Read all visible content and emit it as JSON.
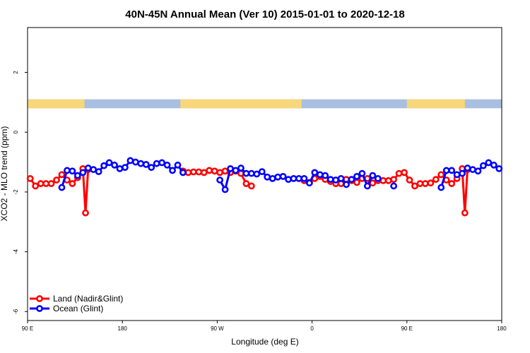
{
  "chart_data": {
    "type": "line",
    "title": "40N-45N Annual Mean (Ver 10)   2015-01-01 to 2020-12-18",
    "xlabel": "Longitude (deg E)",
    "ylabel": "XCO2 - MLO trend (ppm)",
    "xlim": [
      90,
      540
    ],
    "ylim": [
      -6.3,
      3.5
    ],
    "x_ticks": [
      {
        "value": 90,
        "label": "90 E"
      },
      {
        "value": 180,
        "label": "180"
      },
      {
        "value": 270,
        "label": "90 W"
      },
      {
        "value": 360,
        "label": "0"
      },
      {
        "value": 450,
        "label": "90 E"
      },
      {
        "value": 540,
        "label": "180"
      }
    ],
    "y_ticks": [
      {
        "value": 2,
        "label": "2"
      },
      {
        "value": 0,
        "label": "0"
      },
      {
        "value": -2,
        "label": "-2"
      },
      {
        "value": -4,
        "label": "-4"
      },
      {
        "value": -6,
        "label": "-6"
      }
    ],
    "land_mask": {
      "y_range": [
        0.8,
        1.1
      ],
      "land_color": "#f7d77a",
      "ocean_color": "#a9bfe0",
      "land_segments": [
        [
          90,
          144
        ],
        [
          235,
          350
        ],
        [
          450,
          505
        ]
      ]
    },
    "legend_position": "bottom-left",
    "series": [
      {
        "name": "Land (Nadir&Glint)",
        "color": "#ff0000",
        "segments": [
          [
            [
              92.5,
              -1.55
            ],
            [
              97.5,
              -1.8
            ],
            [
              102.5,
              -1.72
            ],
            [
              107.5,
              -1.72
            ],
            [
              112.5,
              -1.72
            ],
            [
              117.5,
              -1.6
            ],
            [
              122.5,
              -1.42
            ],
            [
              127.5,
              -1.6
            ],
            [
              132.5,
              -1.72
            ],
            [
              137.5,
              -1.52
            ],
            [
              142.5,
              -1.22
            ],
            [
              145,
              -2.7
            ],
            [
              147.5,
              -1.25
            ]
          ],
          [
            [
              237.5,
              -1.3
            ],
            [
              242.5,
              -1.35
            ],
            [
              247.5,
              -1.33
            ],
            [
              252.5,
              -1.33
            ],
            [
              257.5,
              -1.35
            ],
            [
              262.5,
              -1.28
            ],
            [
              267.5,
              -1.3
            ],
            [
              272.5,
              -1.35
            ],
            [
              277.5,
              -1.3
            ],
            [
              282.5,
              -1.35
            ],
            [
              287.5,
              -1.3
            ],
            [
              292.5,
              -1.38
            ],
            [
              297.5,
              -1.72
            ],
            [
              302.5,
              -1.8
            ]
          ],
          [
            [
              352.5,
              -1.62
            ],
            [
              357.5,
              -1.68
            ],
            [
              362.5,
              -1.55
            ],
            [
              367.5,
              -1.48
            ],
            [
              372.5,
              -1.58
            ],
            [
              377.5,
              -1.65
            ],
            [
              382.5,
              -1.72
            ],
            [
              387.5,
              -1.72
            ],
            [
              392.5,
              -1.58
            ],
            [
              397.5,
              -1.62
            ],
            [
              402.5,
              -1.68
            ],
            [
              407.5,
              -1.55
            ],
            [
              412.5,
              -1.55
            ],
            [
              417.5,
              -1.7
            ],
            [
              422.5,
              -1.62
            ],
            [
              427.5,
              -1.62
            ],
            [
              432.5,
              -1.62
            ],
            [
              437.5,
              -1.58
            ],
            [
              442.5,
              -1.38
            ],
            [
              447.5,
              -1.35
            ],
            [
              452.5,
              -1.6
            ],
            [
              457.5,
              -1.8
            ],
            [
              462.5,
              -1.72
            ],
            [
              467.5,
              -1.72
            ],
            [
              472.5,
              -1.7
            ],
            [
              477.5,
              -1.58
            ],
            [
              482.5,
              -1.42
            ],
            [
              487.5,
              -1.6
            ],
            [
              492.5,
              -1.72
            ],
            [
              497.5,
              -1.55
            ],
            [
              502.5,
              -1.22
            ],
            [
              505,
              -2.7
            ],
            [
              507.5,
              -1.25
            ]
          ]
        ]
      },
      {
        "name": "Ocean (Glint)",
        "color": "#0000ff",
        "segments": [
          [
            [
              122.5,
              -1.85
            ],
            [
              127.5,
              -1.28
            ],
            [
              132.5,
              -1.3
            ],
            [
              137.5,
              -1.45
            ],
            [
              142.5,
              -1.35
            ],
            [
              147.5,
              -1.2
            ],
            [
              152.5,
              -1.25
            ],
            [
              157.5,
              -1.32
            ],
            [
              162.5,
              -1.12
            ],
            [
              167.5,
              -1.02
            ],
            [
              172.5,
              -1.1
            ],
            [
              177.5,
              -1.22
            ],
            [
              182.5,
              -1.18
            ],
            [
              187.5,
              -0.95
            ],
            [
              192.5,
              -1.0
            ],
            [
              197.5,
              -1.05
            ],
            [
              202.5,
              -1.08
            ],
            [
              207.5,
              -1.18
            ],
            [
              212.5,
              -1.05
            ],
            [
              217.5,
              -1.02
            ],
            [
              222.5,
              -1.1
            ],
            [
              227.5,
              -1.28
            ],
            [
              232.5,
              -1.1
            ],
            [
              237.5,
              -1.35
            ]
          ],
          [
            [
              272.5,
              -1.6
            ],
            [
              277.5,
              -1.92
            ],
            [
              282.5,
              -1.22
            ],
            [
              287.5,
              -1.28
            ],
            [
              292.5,
              -1.2
            ],
            [
              297.5,
              -1.38
            ],
            [
              302.5,
              -1.38
            ],
            [
              307.5,
              -1.4
            ],
            [
              312.5,
              -1.32
            ],
            [
              317.5,
              -1.5
            ],
            [
              322.5,
              -1.55
            ],
            [
              327.5,
              -1.5
            ],
            [
              332.5,
              -1.48
            ],
            [
              337.5,
              -1.58
            ],
            [
              342.5,
              -1.55
            ],
            [
              347.5,
              -1.55
            ],
            [
              352.5,
              -1.55
            ],
            [
              357.5,
              -1.7
            ],
            [
              362.5,
              -1.35
            ],
            [
              367.5,
              -1.42
            ],
            [
              372.5,
              -1.45
            ],
            [
              377.5,
              -1.58
            ],
            [
              382.5,
              -1.6
            ],
            [
              387.5,
              -1.55
            ],
            [
              392.5,
              -1.75
            ],
            [
              397.5,
              -1.58
            ],
            [
              402.5,
              -1.48
            ],
            [
              407.5,
              -1.38
            ],
            [
              412.5,
              -1.8
            ],
            [
              417.5,
              -1.45
            ],
            [
              422.5,
              -1.55
            ]
          ],
          [
            [
              437.5,
              -1.8
            ]
          ],
          [
            [
              482.5,
              -1.85
            ],
            [
              487.5,
              -1.28
            ],
            [
              492.5,
              -1.28
            ],
            [
              497.5,
              -1.42
            ],
            [
              502.5,
              -1.38
            ],
            [
              507.5,
              -1.2
            ],
            [
              512.5,
              -1.25
            ],
            [
              517.5,
              -1.3
            ],
            [
              522.5,
              -1.12
            ],
            [
              527.5,
              -1.02
            ],
            [
              532.5,
              -1.1
            ],
            [
              537.5,
              -1.22
            ]
          ]
        ]
      }
    ]
  }
}
